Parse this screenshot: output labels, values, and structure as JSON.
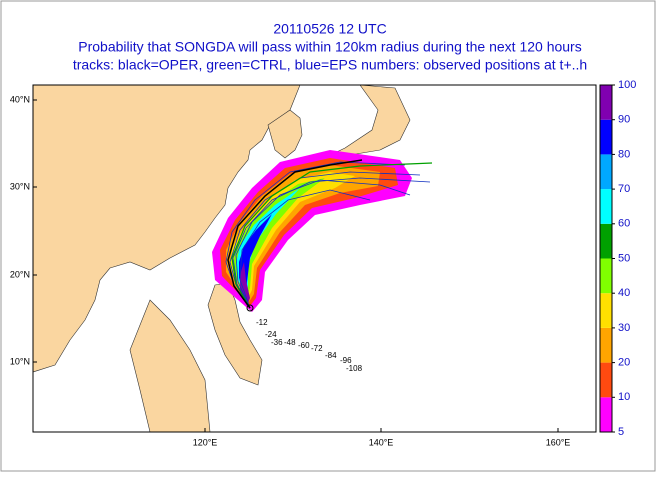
{
  "title_lines": [
    "20110526 12 UTC",
    "Probability that SONGDA will pass within 120km radius during the next 120 hours",
    "tracks: black=OPER, green=CTRL, blue=EPS numbers: observed positions at t+..h"
  ],
  "lat_labels": [
    "40°N",
    "30°N",
    "20°N",
    "10°N"
  ],
  "lon_labels": [
    "120°E",
    "140°E",
    "160°E"
  ],
  "colorbar": {
    "ticks": [
      5,
      10,
      20,
      30,
      40,
      50,
      60,
      70,
      80,
      90,
      100
    ],
    "colors": [
      "#ff00ff",
      "#ff4a10",
      "#ffa500",
      "#ffe000",
      "#80ff00",
      "#00a000",
      "#00ffff",
      "#00a8ff",
      "#0000ff",
      "#8000b0"
    ]
  },
  "observed_labels": [
    "-12",
    "-24",
    "-36",
    "-48",
    "-60",
    "-72",
    "-84",
    "-96",
    "-108"
  ]
}
